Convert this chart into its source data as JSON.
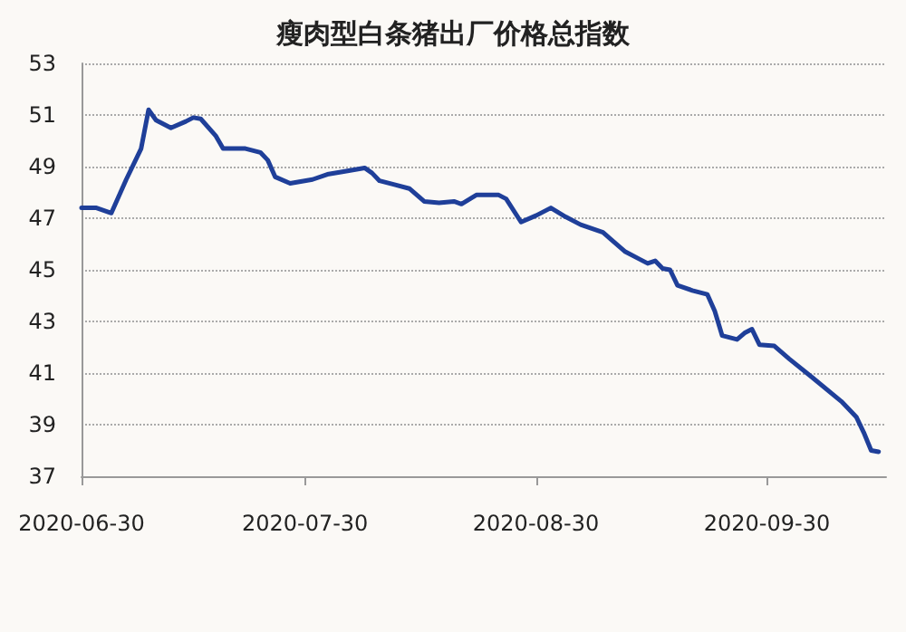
{
  "chart_data": {
    "type": "line",
    "title": "瘦肉型白条猪出厂价格总指数",
    "x": [
      "2020-06-30",
      "2020-07-02",
      "2020-07-04",
      "2020-07-06",
      "2020-07-08",
      "2020-07-09",
      "2020-07-10",
      "2020-07-12",
      "2020-07-14",
      "2020-07-15",
      "2020-07-16",
      "2020-07-18",
      "2020-07-19",
      "2020-07-22",
      "2020-07-24",
      "2020-07-25",
      "2020-07-26",
      "2020-07-28",
      "2020-07-31",
      "2020-08-02",
      "2020-08-04",
      "2020-08-07",
      "2020-08-08",
      "2020-08-09",
      "2020-08-11",
      "2020-08-13",
      "2020-08-15",
      "2020-08-17",
      "2020-08-19",
      "2020-08-20",
      "2020-08-22",
      "2020-08-25",
      "2020-08-26",
      "2020-08-28",
      "2020-08-30",
      "2020-09-01",
      "2020-09-03",
      "2020-09-05",
      "2020-09-08",
      "2020-09-09",
      "2020-09-11",
      "2020-09-13",
      "2020-09-14",
      "2020-09-15",
      "2020-09-16",
      "2020-09-17",
      "2020-09-18",
      "2020-09-20",
      "2020-09-22",
      "2020-09-23",
      "2020-09-24",
      "2020-09-26",
      "2020-09-27",
      "2020-09-28",
      "2020-09-29",
      "2020-10-01",
      "2020-10-03",
      "2020-10-06",
      "2020-10-10",
      "2020-10-12",
      "2020-10-13",
      "2020-10-14",
      "2020-10-15"
    ],
    "series": [
      {
        "color": "#1f3f99",
        "values": [
          47.4,
          47.4,
          47.2,
          48.5,
          49.7,
          51.2,
          50.8,
          50.5,
          50.75,
          50.9,
          50.85,
          50.2,
          49.7,
          49.7,
          49.55,
          49.25,
          48.6,
          48.35,
          48.5,
          48.7,
          48.8,
          48.95,
          48.75,
          48.45,
          48.3,
          48.15,
          47.65,
          47.6,
          47.65,
          47.55,
          47.9,
          47.9,
          47.75,
          46.85,
          47.1,
          47.4,
          47.05,
          46.75,
          46.45,
          46.2,
          45.7,
          45.4,
          45.25,
          45.35,
          45.05,
          45.0,
          44.4,
          44.2,
          44.05,
          43.4,
          42.45,
          42.3,
          42.55,
          42.7,
          42.1,
          42.05,
          41.55,
          40.85,
          39.9,
          39.3,
          38.7,
          38.0,
          37.95
        ]
      }
    ],
    "xlim": [
      "2020-06-30",
      "2020-10-16"
    ],
    "xticks": [
      "2020-06-30",
      "2020-07-30",
      "2020-08-30",
      "2020-09-30"
    ],
    "ylim": [
      37,
      53
    ],
    "yticks": [
      37,
      39,
      41,
      43,
      45,
      47,
      49,
      51,
      53
    ],
    "grid": "y",
    "marker": "none",
    "line_style": "solid"
  }
}
